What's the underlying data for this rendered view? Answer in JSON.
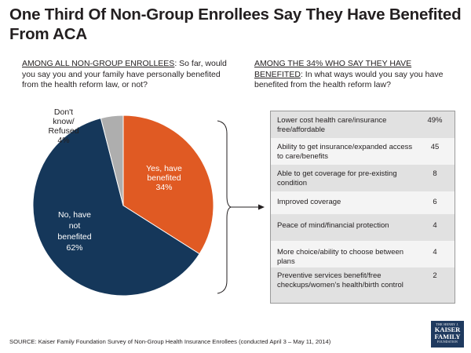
{
  "title": "One Third Of Non-Group Enrollees Say They Have Benefited From ACA",
  "left_question": {
    "underlined": "AMONG ALL NON-GROUP ENROLLEES",
    "text": ": So far, would you say you and your family have personally benefited from the health reform law, or not?"
  },
  "right_question": {
    "underlined": "AMONG THE 34% WHO SAY THEY HAVE BENEFITED",
    "text": ": In what ways would you say you have benefited from the health reform law?"
  },
  "chart_data": [
    {
      "type": "pie",
      "title": "So far, would you say you and your family have personally benefited from the health reform law, or not?",
      "slices": [
        {
          "label_lines": [
            "Yes, have",
            "benefited",
            "34%"
          ],
          "label": "Yes, have benefited",
          "value": 34,
          "color": "#e05a23"
        },
        {
          "label_lines": [
            "No, have",
            "not",
            "benefited",
            "62%"
          ],
          "label": "No, have not benefited",
          "value": 62,
          "color": "#15375a"
        },
        {
          "label_lines": [
            "Don't",
            "know/",
            "Refused",
            "4%"
          ],
          "label": "Don't know/Refused",
          "value": 4,
          "color": "#aeaeae"
        }
      ]
    },
    {
      "type": "table",
      "title": "In what ways would you say you have benefited from the health reform law?",
      "rows": [
        {
          "label": "Lower cost health care/insurance free/affordable",
          "value": "49%"
        },
        {
          "label": "Ability to get insurance/expanded access to care/benefits",
          "value": "45"
        },
        {
          "label": "Able to get coverage for pre-existing condition",
          "value": "8"
        },
        {
          "label": "Improved coverage",
          "value": "6"
        },
        {
          "label": "Peace of mind/financial protection",
          "value": "4"
        },
        {
          "label": "More choice/ability to choose between plans",
          "value": "4"
        },
        {
          "label": "Preventive services benefit/free checkups/women’s health/birth control",
          "value": "2"
        }
      ]
    }
  ],
  "source": "SOURCE: Kaiser Family Foundation Survey of Non-Group Health Insurance Enrollees (conducted April 3 – May 11, 2014)",
  "logo": {
    "line1": "THE HENRY J.",
    "line2a": "KAISER",
    "line2b": "FAMILY",
    "line3": "FOUNDATION"
  }
}
